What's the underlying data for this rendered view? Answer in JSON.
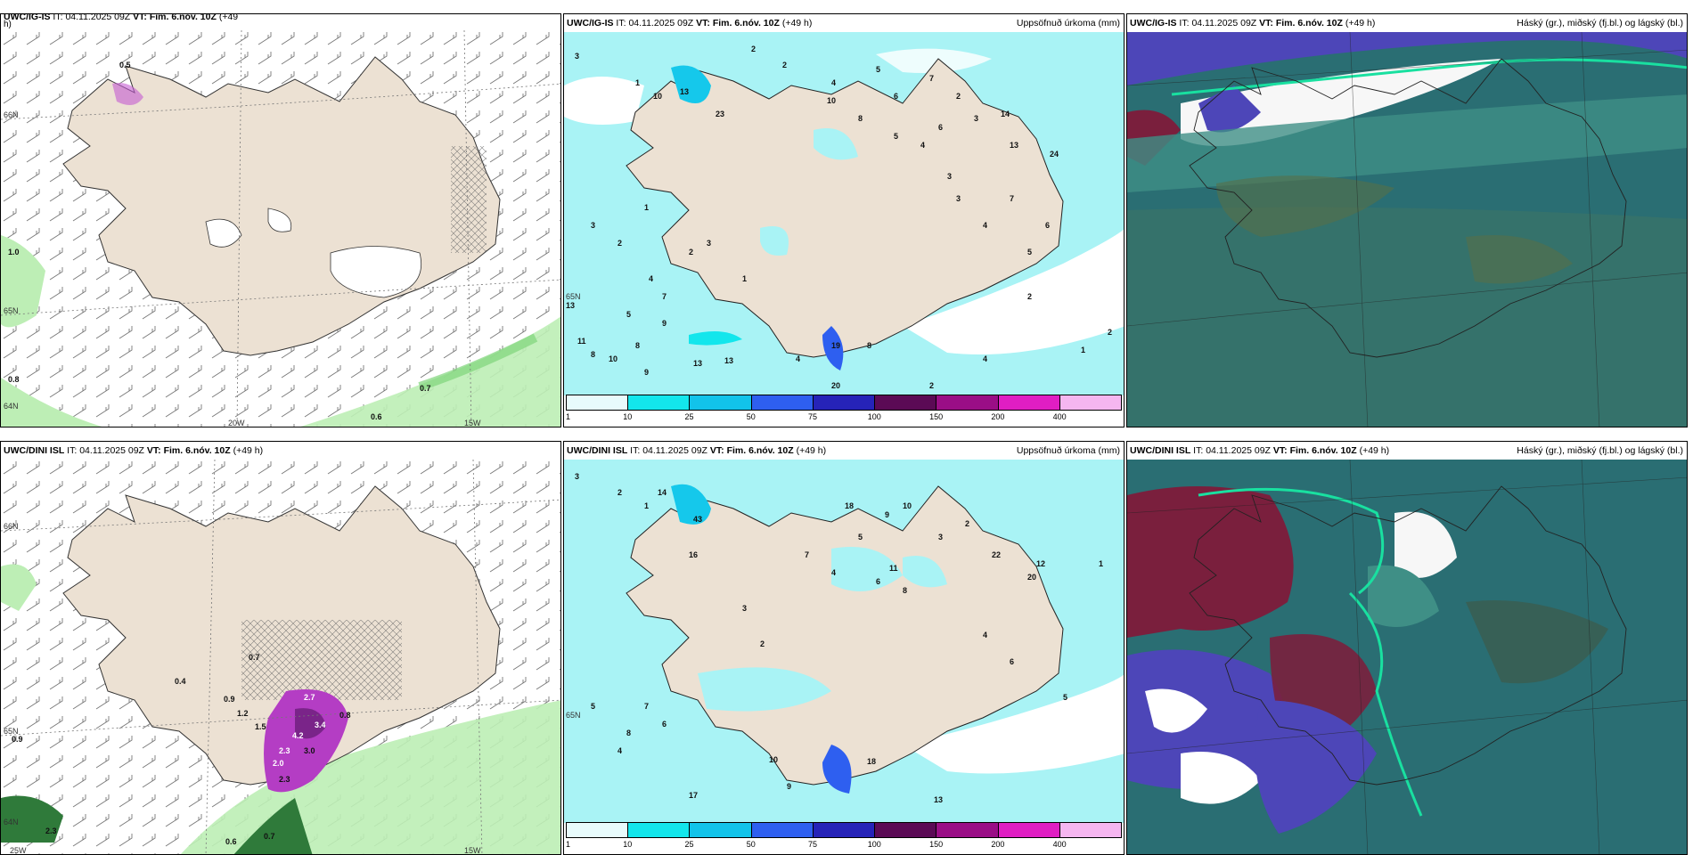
{
  "colors": {
    "land": "#ece1d3",
    "sea_precip": "#a9f3f5",
    "wind_green": "#b6f0b0",
    "magenta": "#b43dc4",
    "cloud_dark": "#2a6e73",
    "cloud_mid": "#3f8f86",
    "cloud_violet": "#4d46b8",
    "cloud_red": "#7a1f3d"
  },
  "panels": [
    {
      "id": "ig-wind",
      "model": "UWC/IG-IS",
      "it_label": "IT:",
      "it_value": "04.11.2025 09Z",
      "vt_label": "VT:",
      "vt_value": "Fim. 6.nóv. 10Z",
      "lead": "(+49",
      "lead_wrap": "h)",
      "right_title": "",
      "lat_labels": [
        "66N",
        "65N",
        "64N"
      ],
      "lon_labels": [
        "20W",
        "15W"
      ],
      "values": [
        "0.5",
        "1.0",
        "0.8",
        "0.7",
        "0.6"
      ]
    },
    {
      "id": "ig-precip",
      "model": "UWC/IG-IS",
      "it_label": "IT:",
      "it_value": "04.11.2025 09Z",
      "vt_label": "VT:",
      "vt_value": "Fim. 6.nóv. 10Z",
      "lead": "(+49 h)",
      "right_title": "Uppsöfnuð úrkoma (mm)",
      "lat_labels": [
        "65N"
      ],
      "values": [
        "3",
        "2",
        "1",
        "10",
        "13",
        "23",
        "2",
        "4",
        "5",
        "6",
        "7",
        "2",
        "3",
        "8",
        "10",
        "5",
        "4",
        "6",
        "14",
        "13",
        "24",
        "3",
        "2",
        "1",
        "5",
        "7",
        "4",
        "3",
        "9",
        "2",
        "1",
        "13",
        "11",
        "8",
        "10",
        "9",
        "8",
        "13",
        "13",
        "19",
        "20",
        "8",
        "4",
        "2",
        "3",
        "4",
        "1",
        "2",
        "3",
        "7",
        "6",
        "5",
        "4",
        "2"
      ]
    },
    {
      "id": "ig-cloud",
      "model": "UWC/IG-IS",
      "it_label": "IT:",
      "it_value": "04.11.2025 09Z",
      "vt_label": "VT:",
      "vt_value": "Fim. 6.nóv. 10Z",
      "lead": "(+49 h)",
      "right_title": "Háský (gr.), miðský (fj.bl.) og lágský (bl.)"
    },
    {
      "id": "dini-wind",
      "model": "UWC/DINI ISL",
      "it_label": "IT:",
      "it_value": "04.11.2025 09Z",
      "vt_label": "VT:",
      "vt_value": "Fim. 6.nóv. 10Z",
      "lead": "(+49 h)",
      "right_title": "",
      "lat_labels": [
        "66N",
        "65N",
        "64N"
      ],
      "lon_labels": [
        "25W",
        "15W"
      ],
      "values": [
        "0.7",
        "0.4",
        "0.9",
        "1.2",
        "1.5",
        "2.7",
        "3.4",
        "4.2",
        "2.3",
        "2.0",
        "3.0",
        "2.3",
        "0.8",
        "0.9",
        "2.3",
        "0.6",
        "0.7"
      ]
    },
    {
      "id": "dini-precip",
      "model": "UWC/DINI ISL",
      "it_label": "IT:",
      "it_value": "04.11.2025 09Z",
      "vt_label": "VT:",
      "vt_value": "Fim. 6.nóv. 10Z",
      "lead": "(+49 h)",
      "right_title": "Uppsöfnuð úrkoma (mm)",
      "lat_labels": [
        "65N"
      ],
      "values": [
        "3",
        "2",
        "1",
        "14",
        "16",
        "43",
        "18",
        "9",
        "10",
        "22",
        "7",
        "5",
        "4",
        "6",
        "8",
        "11",
        "3",
        "2",
        "12",
        "17",
        "10",
        "9",
        "20",
        "18",
        "8",
        "6",
        "4",
        "5",
        "7",
        "3",
        "2",
        "4",
        "1",
        "13",
        "5",
        "6"
      ]
    },
    {
      "id": "dini-cloud",
      "model": "UWC/DINI ISL",
      "it_label": "IT:",
      "it_value": "04.11.2025 09Z",
      "vt_label": "VT:",
      "vt_value": "Fim. 6.nóv. 10Z",
      "lead": "(+49 h)",
      "right_title": "Háský (gr.), miðský (fj.bl.) og lágský (bl.)"
    }
  ],
  "precip_legend": {
    "ticks": [
      "1",
      "10",
      "25",
      "50",
      "75",
      "100",
      "150",
      "200",
      "400"
    ],
    "colors": [
      "#e8fbfc",
      "#13e6ec",
      "#12c3ea",
      "#2e5ff0",
      "#2623b8",
      "#5b0a55",
      "#9a0e86",
      "#e01ec3",
      "#f5b6f0"
    ]
  }
}
